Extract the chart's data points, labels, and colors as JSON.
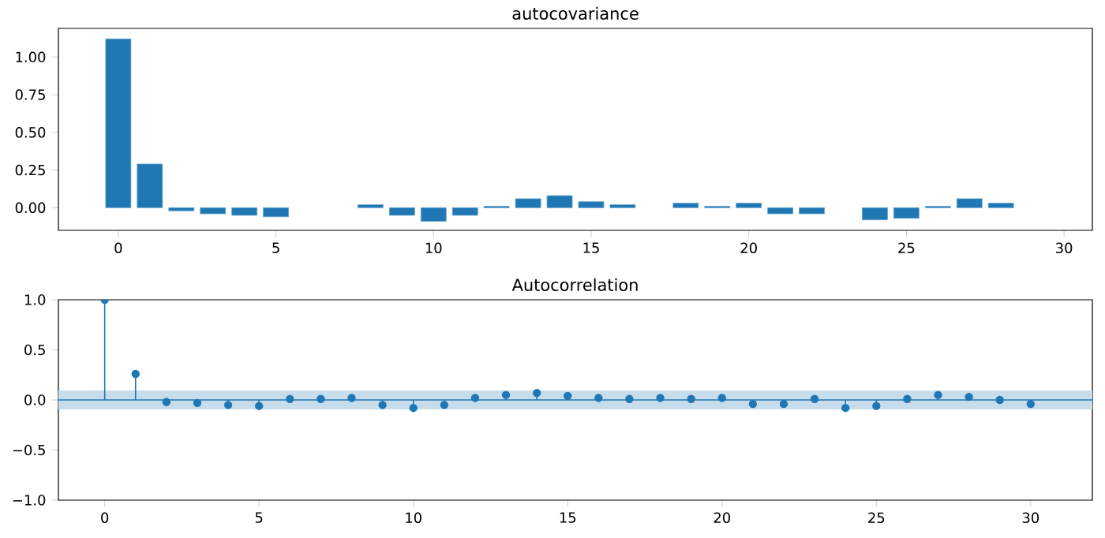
{
  "chart_data": [
    {
      "type": "bar",
      "title": "autocovariance",
      "color": "#1f77b4",
      "x": [
        0,
        1,
        2,
        3,
        4,
        5,
        6,
        7,
        8,
        9,
        10,
        11,
        12,
        13,
        14,
        15,
        16,
        17,
        18,
        19,
        20,
        21,
        22,
        23,
        24,
        25,
        26,
        27,
        28
      ],
      "values": [
        1.12,
        0.29,
        -0.02,
        -0.04,
        -0.05,
        -0.06,
        null,
        null,
        0.02,
        -0.05,
        -0.09,
        -0.05,
        0.01,
        0.06,
        0.08,
        0.04,
        0.02,
        null,
        0.03,
        0.01,
        0.03,
        -0.04,
        -0.04,
        null,
        -0.08,
        -0.07,
        0.01,
        0.06,
        0.03
      ],
      "xlim": [
        -1.9,
        30.9
      ],
      "ylim": [
        -0.15,
        1.19
      ],
      "xticks": [
        0,
        5,
        10,
        15,
        20,
        25,
        30
      ],
      "yticks": [
        {
          "value": 0,
          "label": "0.00"
        },
        {
          "value": 0.25,
          "label": "0.25"
        },
        {
          "value": 0.5,
          "label": "0.50"
        },
        {
          "value": 0.75,
          "label": "0.75"
        },
        {
          "value": 1,
          "label": "1.00"
        }
      ]
    },
    {
      "type": "lollipop",
      "title": "Autocorrelation",
      "marker": "circle",
      "series": [
        {
          "type": "lollipop",
          "color": "#1f77b4",
          "x": [
            0,
            1,
            2,
            3,
            4,
            5,
            6,
            7,
            8,
            9,
            10,
            11,
            12,
            13,
            14,
            15,
            16,
            17,
            18,
            19,
            20,
            21,
            22,
            23,
            24,
            25,
            26,
            27,
            28,
            29,
            30
          ],
          "values": [
            1.0,
            0.26,
            -0.02,
            -0.03,
            -0.05,
            -0.06,
            0.01,
            0.01,
            0.02,
            -0.05,
            -0.08,
            -0.05,
            0.02,
            0.05,
            0.07,
            0.04,
            0.02,
            0.01,
            0.02,
            0.01,
            0.02,
            -0.04,
            -0.04,
            0.01,
            -0.08,
            -0.06,
            0.01,
            0.05,
            0.03,
            0,
            -0.04
          ]
        }
      ],
      "bands": [
        {
          "axis": "y",
          "from": -0.094,
          "to": 0.094,
          "color": "#c7ddec"
        }
      ],
      "ref_lines": [
        {
          "axis": "y",
          "value": 0,
          "color": "#1f77b4"
        }
      ],
      "xlim": [
        -1.5,
        32
      ],
      "ylim": [
        -1,
        1
      ],
      "xticks": [
        0,
        5,
        10,
        15,
        20,
        25,
        30
      ],
      "yticks": [
        {
          "value": -1,
          "label": "−1.0"
        },
        {
          "value": -0.5,
          "label": "−0.5"
        },
        {
          "value": 0,
          "label": "0.0"
        },
        {
          "value": 0.5,
          "label": "0.5"
        },
        {
          "value": 1,
          "label": "1.0"
        }
      ]
    }
  ]
}
